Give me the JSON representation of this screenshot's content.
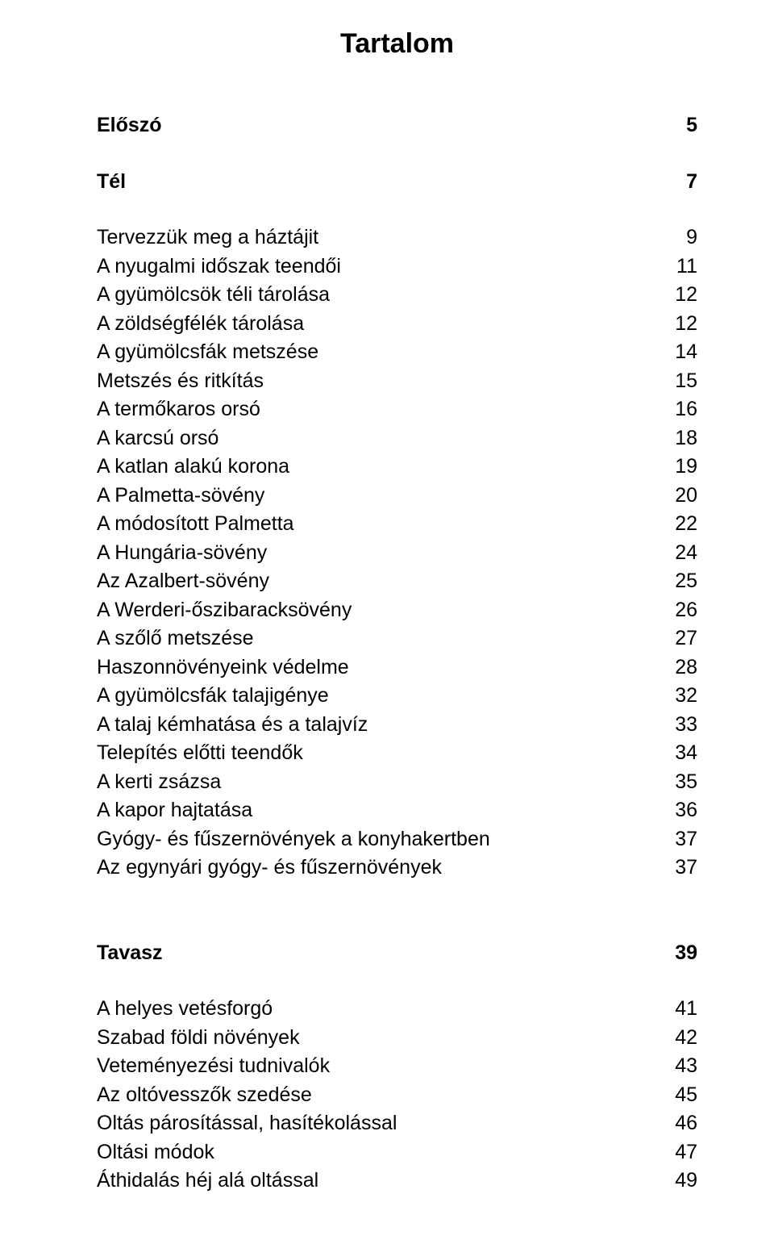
{
  "title": "Tartalom",
  "entries": [
    {
      "label": "Előszó",
      "page": "5",
      "bold": true,
      "gap": ""
    },
    {
      "label": "Tél",
      "page": "7",
      "bold": true,
      "gap": "gap-before"
    },
    {
      "label": "Tervezzük meg a háztájit",
      "page": "9",
      "bold": false,
      "gap": "gap-before"
    },
    {
      "label": "A nyugalmi időszak teendői",
      "page": "11",
      "bold": false,
      "gap": ""
    },
    {
      "label": "A gyümölcsök téli tárolása",
      "page": "12",
      "bold": false,
      "gap": ""
    },
    {
      "label": "A zöldségfélék tárolása",
      "page": "12",
      "bold": false,
      "gap": ""
    },
    {
      "label": "A gyümölcsfák metszése",
      "page": "14",
      "bold": false,
      "gap": ""
    },
    {
      "label": "Metszés és ritkítás",
      "page": "15",
      "bold": false,
      "gap": ""
    },
    {
      "label": "A termőkaros orsó",
      "page": "16",
      "bold": false,
      "gap": ""
    },
    {
      "label": "A karcsú orsó",
      "page": "18",
      "bold": false,
      "gap": ""
    },
    {
      "label": "A katlan alakú korona",
      "page": "19",
      "bold": false,
      "gap": ""
    },
    {
      "label": "A Palmetta-sövény",
      "page": "20",
      "bold": false,
      "gap": ""
    },
    {
      "label": "A módosított Palmetta",
      "page": "22",
      "bold": false,
      "gap": ""
    },
    {
      "label": "A Hungária-sövény",
      "page": "24",
      "bold": false,
      "gap": ""
    },
    {
      "label": "Az Azalbert-sövény",
      "page": "25",
      "bold": false,
      "gap": ""
    },
    {
      "label": "A Werderi-őszibaracksövény",
      "page": "26",
      "bold": false,
      "gap": ""
    },
    {
      "label": "A szőlő metszése",
      "page": "27",
      "bold": false,
      "gap": ""
    },
    {
      "label": "Haszonnövényeink védelme",
      "page": "28",
      "bold": false,
      "gap": ""
    },
    {
      "label": "A gyümölcsfák talajigénye",
      "page": "32",
      "bold": false,
      "gap": ""
    },
    {
      "label": "A talaj kémhatása és a talajvíz",
      "page": "33",
      "bold": false,
      "gap": ""
    },
    {
      "label": "Telepítés előtti teendők",
      "page": "34",
      "bold": false,
      "gap": ""
    },
    {
      "label": "A kerti zsázsa",
      "page": "35",
      "bold": false,
      "gap": ""
    },
    {
      "label": "A kapor hajtatása",
      "page": "36",
      "bold": false,
      "gap": ""
    },
    {
      "label": "Gyógy- és fűszernövények a konyhakertben",
      "page": "37",
      "bold": false,
      "gap": ""
    },
    {
      "label": "Az egynyári gyógy- és fűszernövények",
      "page": "37",
      "bold": false,
      "gap": ""
    },
    {
      "label": "Tavasz",
      "page": "39",
      "bold": true,
      "gap": "gap-before-large"
    },
    {
      "label": "A helyes vetésforgó",
      "page": "41",
      "bold": false,
      "gap": "gap-before"
    },
    {
      "label": "Szabad földi növények",
      "page": "42",
      "bold": false,
      "gap": ""
    },
    {
      "label": "Veteményezési tudnivalók",
      "page": "43",
      "bold": false,
      "gap": ""
    },
    {
      "label": "Az oltóvesszők szedése",
      "page": "45",
      "bold": false,
      "gap": ""
    },
    {
      "label": "Oltás párosítással, hasítékolással",
      "page": "46",
      "bold": false,
      "gap": ""
    },
    {
      "label": "Oltási módok",
      "page": "47",
      "bold": false,
      "gap": ""
    },
    {
      "label": "Áthidalás héj alá oltással",
      "page": "49",
      "bold": false,
      "gap": ""
    }
  ]
}
